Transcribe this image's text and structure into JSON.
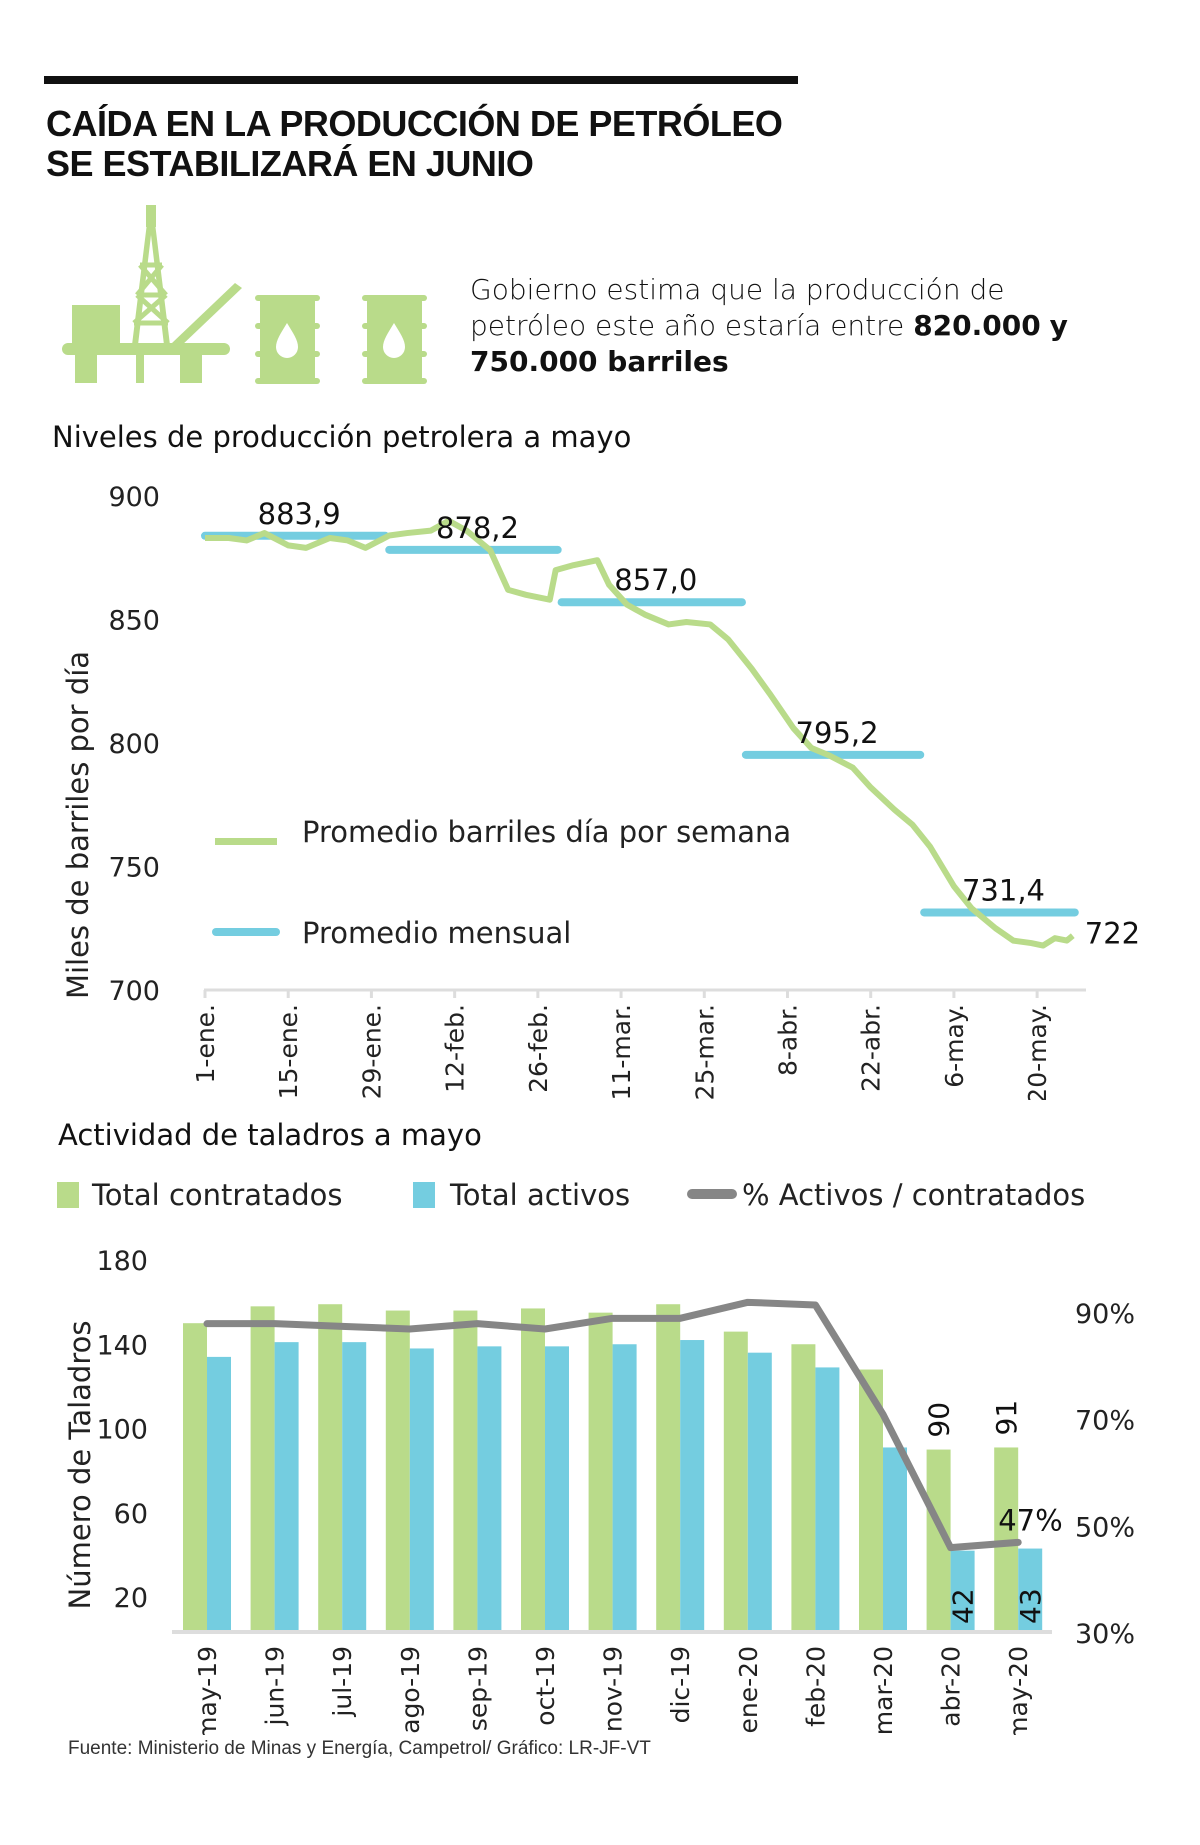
{
  "header": {
    "title_line1": "CAÍDA EN LA PRODUCCIÓN DE PETRÓLEO",
    "title_line2": "SE ESTABILIZARÁ EN JUNIO"
  },
  "icons": [
    "oil-platform-icon",
    "oil-barrel-icon",
    "oil-barrel-icon"
  ],
  "colors": {
    "green": "#b9db8a",
    "blue": "#74cde0",
    "gray": "#868686",
    "axis": "#dddddd"
  },
  "intro": {
    "text_part1": "Gobierno estima que la producción de petróleo este año estaría entre ",
    "bold_part1": "820.000",
    "text_part2": " ",
    "bold_part2": "y 750.000 barriles"
  },
  "chart_data": [
    {
      "type": "line",
      "title": "Niveles de producción petrolera a mayo",
      "ylabel": "Miles de barriles por día",
      "xlabel": "",
      "ylim": [
        700,
        900
      ],
      "yticks": [
        900,
        850,
        800,
        750,
        700
      ],
      "xticks": [
        "1-ene.",
        "15-ene.",
        "29-ene.",
        "12-feb.",
        "26-feb.",
        "11-mar.",
        "25-mar.",
        "8-abr.",
        "22-abr.",
        "6-may.",
        "20-may."
      ],
      "x_day_range": [
        0,
        146
      ],
      "legend": [
        {
          "name": "Promedio barriles día por semana",
          "color": "#b9db8a"
        },
        {
          "name": "Promedio mensual",
          "color": "#74cde0"
        }
      ],
      "legend_position": "center-left",
      "series": [
        {
          "name": "Promedio barriles día por semana",
          "x_days": [
            0,
            4,
            7,
            10,
            14,
            17,
            21,
            24,
            27,
            31,
            34,
            38,
            41,
            44,
            48,
            51,
            54,
            58,
            59,
            62,
            66,
            68,
            71,
            74,
            78,
            81,
            85,
            88,
            92,
            95,
            99,
            102,
            105,
            109,
            112,
            116,
            119,
            122,
            126,
            129,
            133,
            136,
            139,
            141,
            143,
            145,
            146
          ],
          "values": [
            883,
            883,
            882,
            885,
            880,
            879,
            883,
            882,
            879,
            884,
            885,
            886,
            890,
            886,
            878,
            862,
            860,
            858,
            870,
            872,
            874,
            864,
            856,
            852,
            848,
            849,
            848,
            842,
            830,
            820,
            806,
            798,
            795,
            790,
            782,
            773,
            767,
            758,
            742,
            733,
            725,
            720,
            719,
            718,
            721,
            720,
            722
          ]
        },
        {
          "name": "Promedio mensual",
          "segments": [
            {
              "month": "ene",
              "value": 883.9
            },
            {
              "month": "feb",
              "value": 878.2
            },
            {
              "month": "mar",
              "value": 857.0
            },
            {
              "month": "abr",
              "value": 795.2
            },
            {
              "month": "may",
              "value": 731.4
            }
          ]
        }
      ],
      "labels": [
        "883,9",
        "878,2",
        "857,0",
        "795,2",
        "731,4",
        "722"
      ]
    },
    {
      "type": "bar",
      "title": "Actividad de taladros a mayo",
      "ylabel": "Número de Taladros",
      "ylim": [
        0,
        180
      ],
      "yticks": [
        180,
        140,
        100,
        60,
        20
      ],
      "y2lim": [
        30,
        95
      ],
      "y2ticks": [
        "90%",
        "70%",
        "50%",
        "30%"
      ],
      "y2tick_values": [
        90,
        70,
        50,
        30
      ],
      "categories": [
        "may-19",
        "jun-19",
        "jul-19",
        "ago-19",
        "sep-19",
        "oct-19",
        "nov-19",
        "dic-19",
        "ene-20",
        "feb-20",
        "mar-20",
        "abr-20",
        "may-20"
      ],
      "legend": [
        {
          "name": "Total contratados",
          "color": "#b9db8a",
          "kind": "bar"
        },
        {
          "name": "Total activos",
          "color": "#74cde0",
          "kind": "bar"
        },
        {
          "name": "% Activos / contratados",
          "color": "#868686",
          "kind": "line"
        }
      ],
      "legend_position": "top",
      "series": [
        {
          "name": "Total contratados",
          "values": [
            150,
            158,
            159,
            156,
            156,
            157,
            155,
            159,
            146,
            140,
            128,
            90,
            91
          ]
        },
        {
          "name": "Total activos",
          "values": [
            134,
            141,
            141,
            138,
            139,
            139,
            140,
            142,
            136,
            129,
            91,
            42,
            43
          ]
        },
        {
          "name": "% Activos / contratados",
          "axis": "right",
          "values": [
            88,
            88,
            87.5,
            87,
            88,
            87,
            89,
            89,
            92,
            91.5,
            71,
            46,
            47
          ]
        }
      ],
      "data_labels": {
        "contratados_abr": "90",
        "contratados_may": "91",
        "activos_abr": "42",
        "activos_may": "43",
        "pct_may": "47%"
      }
    }
  ],
  "footer": {
    "source": "Fuente: Ministerio de Minas y Energía, Campetrol/ Gráfico: LR-JF-VT"
  }
}
